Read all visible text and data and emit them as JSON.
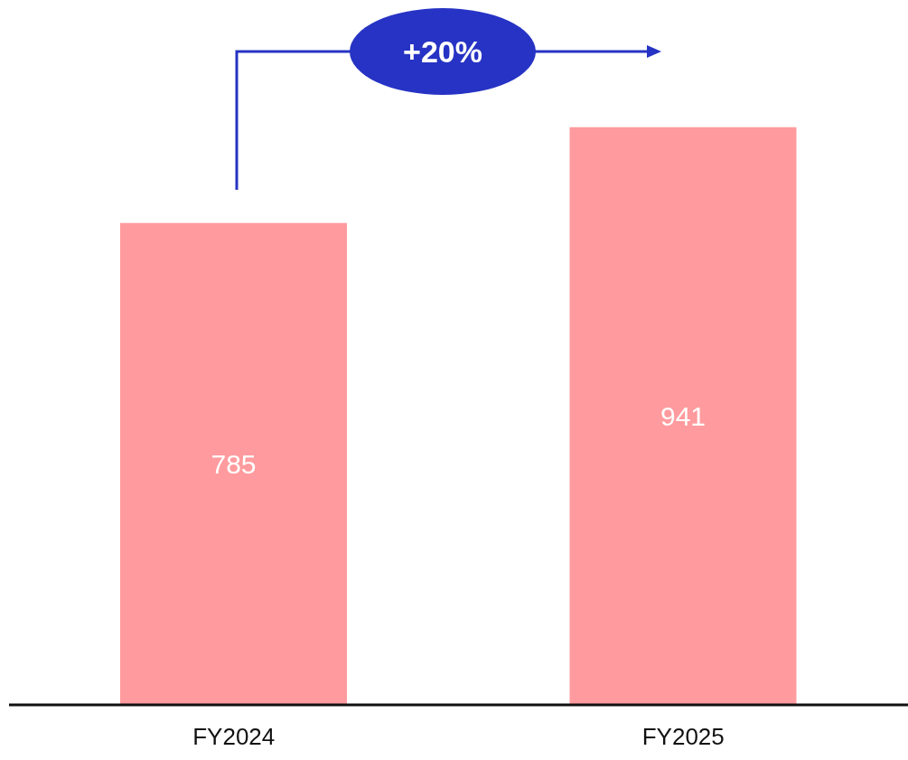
{
  "chart_data": {
    "type": "bar",
    "categories": [
      "FY2024",
      "FY2025"
    ],
    "values": [
      785,
      941
    ],
    "color": "#ff9b9e",
    "data_labels": true,
    "annotations": [
      "+20%"
    ]
  }
}
